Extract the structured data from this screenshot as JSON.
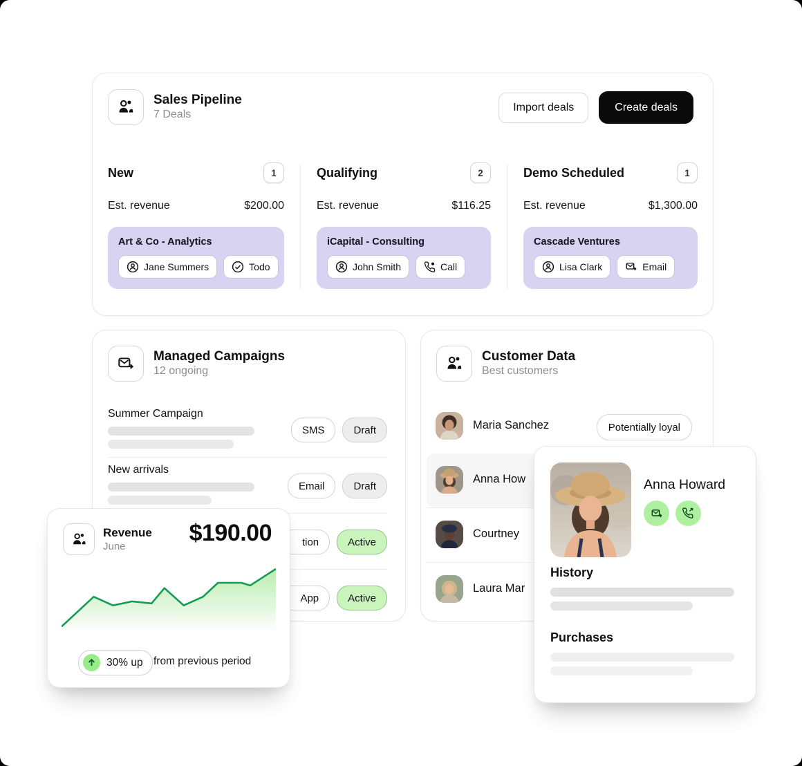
{
  "sales_pipeline": {
    "title": "Sales Pipeline",
    "subtitle": "7 Deals",
    "buttons": {
      "import": "Import deals",
      "create": "Create deals"
    },
    "columns": [
      {
        "name": "New",
        "count": "1",
        "est_label": "Est. revenue",
        "est_value": "$200.00",
        "deal": {
          "title": "Art & Co - Analytics",
          "chips": [
            {
              "icon": "person-circle-icon",
              "label": "Jane Summers"
            },
            {
              "icon": "check-circle-icon",
              "label": "Todo"
            }
          ]
        }
      },
      {
        "name": "Qualifying",
        "count": "2",
        "est_label": "Est. revenue",
        "est_value": "$116.25",
        "deal": {
          "title": "iCapital - Consulting",
          "chips": [
            {
              "icon": "person-circle-icon",
              "label": "John Smith"
            },
            {
              "icon": "phone-icon",
              "label": "Call"
            }
          ]
        }
      },
      {
        "name": "Demo Scheduled",
        "count": "1",
        "est_label": "Est. revenue",
        "est_value": "$1,300.00",
        "deal": {
          "title": "Cascade Ventures",
          "chips": [
            {
              "icon": "person-circle-icon",
              "label": "Lisa Clark"
            },
            {
              "icon": "mail-forward-icon",
              "label": "Email"
            }
          ]
        }
      }
    ]
  },
  "campaigns": {
    "title": "Managed Campaigns",
    "subtitle": "12 ongoing",
    "rows": [
      {
        "name": "Summer Campaign",
        "type": "SMS",
        "status": "Draft"
      },
      {
        "name": "New arrivals",
        "type": "Email",
        "status": "Draft"
      },
      {
        "name": "",
        "type": "tion",
        "status": "Active"
      },
      {
        "name": "",
        "type": "App",
        "status": "Active"
      }
    ]
  },
  "customers": {
    "title": "Customer Data",
    "subtitle": "Best customers",
    "rows": [
      {
        "name": "Maria Sanchez",
        "badge": "Potentially loyal"
      },
      {
        "name": "Anna How"
      },
      {
        "name": "Courtney"
      },
      {
        "name": "Laura Mar"
      }
    ]
  },
  "revenue": {
    "title": "Revenue",
    "subtitle": "June",
    "amount": "$190.00",
    "badge": "30% up",
    "badge_note": "from previous period"
  },
  "profile": {
    "name": "Anna Howard",
    "sections": [
      {
        "title": "History"
      },
      {
        "title": "Purchases"
      }
    ]
  },
  "chart_data": {
    "type": "area",
    "title": "Revenue June trend",
    "x_percent": [
      0,
      15,
      24,
      33,
      42,
      48,
      57,
      66,
      73,
      84,
      88,
      100
    ],
    "values": [
      10,
      55,
      42,
      48,
      45,
      68,
      42,
      55,
      76,
      76,
      72,
      97
    ],
    "ylim": [
      0,
      100
    ],
    "line_color": "#179a54",
    "fill_color": "#b7ecab",
    "grid": false,
    "legend": false
  },
  "colors": {
    "deal_bg": "#d8d3f0",
    "active_chip": "#c9f4bc",
    "action_green": "#aef0a0",
    "badge_green": "#98ed88",
    "dark_button": "#0a0a0a"
  }
}
